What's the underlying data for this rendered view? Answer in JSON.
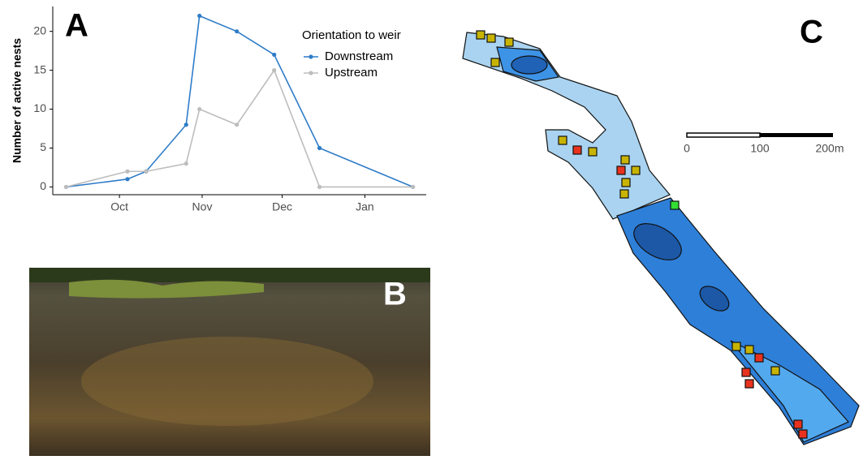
{
  "panel_labels": [
    "A",
    "B",
    "C"
  ],
  "scale_bar": {
    "labels": [
      "0",
      "100",
      "200m"
    ]
  },
  "chart_data": {
    "type": "line",
    "y_label": "Number of active nests",
    "legend_title": "Orientation to weir",
    "x": [
      -20,
      3,
      10,
      25,
      30,
      44,
      58,
      75,
      110
    ],
    "xlim": [
      -25,
      115
    ],
    "xticks": [
      {
        "value": 0,
        "label": "Oct"
      },
      {
        "value": 31,
        "label": "Nov"
      },
      {
        "value": 61,
        "label": "Dec"
      },
      {
        "value": 92,
        "label": "Jan"
      }
    ],
    "ylim": [
      -1,
      23.2
    ],
    "yticks": [
      0,
      5,
      10,
      15,
      20
    ],
    "series": [
      {
        "name": "Downstream",
        "color": "#2e7cc8",
        "values": [
          0,
          1,
          2,
          8,
          22,
          20,
          17,
          5,
          0
        ]
      },
      {
        "name": "Upstream",
        "color": "#bdbdbd",
        "values": [
          0,
          2,
          2,
          3,
          10,
          8,
          15,
          0,
          0
        ]
      }
    ]
  }
}
